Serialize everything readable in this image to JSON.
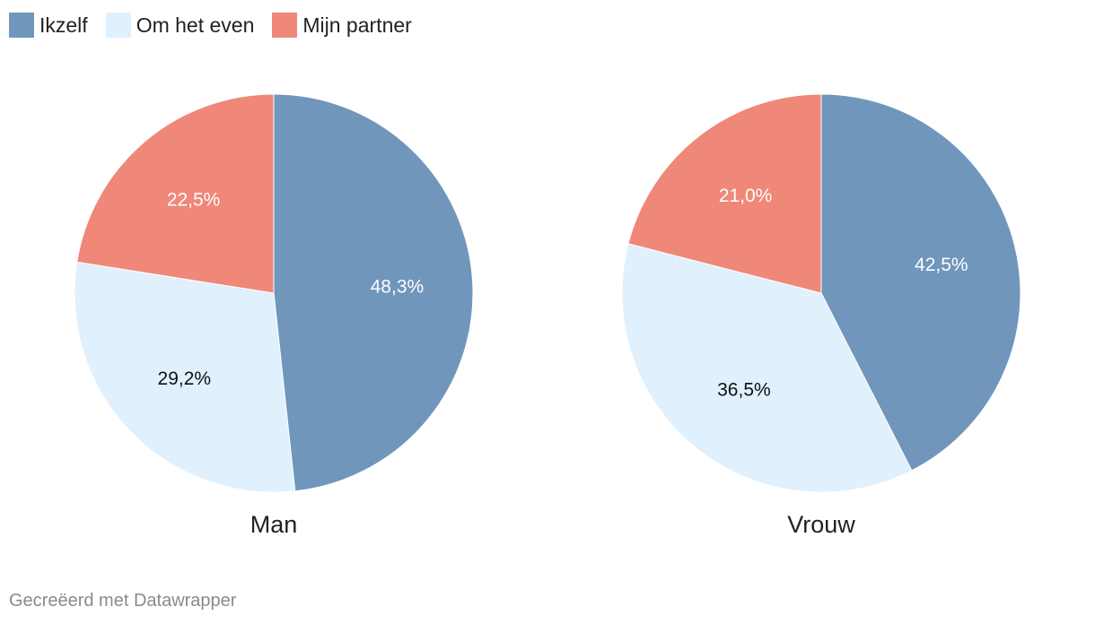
{
  "chart_data": {
    "type": "pie",
    "legend": [
      {
        "name": "Ikzelf",
        "color": "#7096bc"
      },
      {
        "name": "Om het even",
        "color": "#e0f0fd"
      },
      {
        "name": "Mijn partner",
        "color": "#ef8878"
      }
    ],
    "legend_placement": "top-left",
    "charts": [
      {
        "title": "Man",
        "slices": [
          {
            "category": "Ikzelf",
            "value": 48.3,
            "label": "48,3%",
            "color": "#7096bc",
            "label_color": "#ffffff"
          },
          {
            "category": "Om het even",
            "value": 29.2,
            "label": "29,2%",
            "color": "#e0f0fd",
            "label_color": "#111111"
          },
          {
            "category": "Mijn partner",
            "value": 22.5,
            "label": "22,5%",
            "color": "#ef8878",
            "label_color": "#ffffff"
          }
        ]
      },
      {
        "title": "Vrouw",
        "slices": [
          {
            "category": "Ikzelf",
            "value": 42.5,
            "label": "42,5%",
            "color": "#7096bc",
            "label_color": "#ffffff"
          },
          {
            "category": "Om het even",
            "value": 36.5,
            "label": "36,5%",
            "color": "#e0f0fd",
            "label_color": "#111111"
          },
          {
            "category": "Mijn partner",
            "value": 21.0,
            "label": "21,0%",
            "color": "#ef8878",
            "label_color": "#ffffff"
          }
        ]
      }
    ]
  },
  "footer": {
    "credit": "Gecreëerd met Datawrapper"
  }
}
